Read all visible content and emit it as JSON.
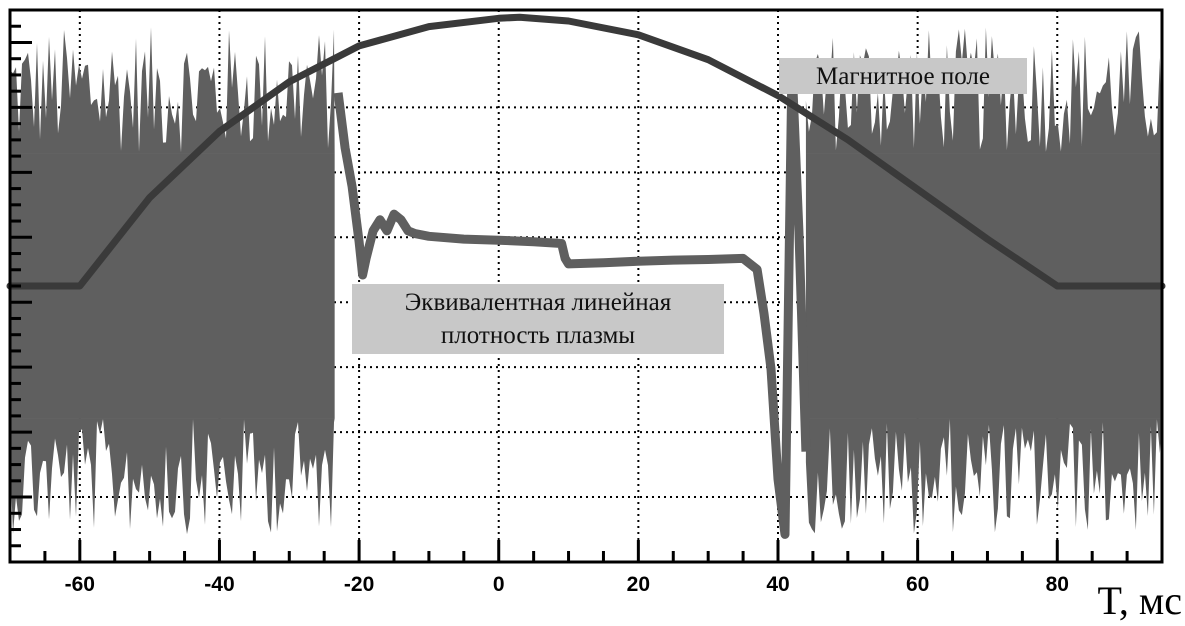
{
  "chart_data": {
    "type": "line",
    "title": "",
    "xlabel": "T, мс",
    "ylabel": "",
    "xlim": [
      -70,
      95
    ],
    "ylim": [
      0,
      1
    ],
    "grid": true,
    "x_ticks": [
      -60,
      -40,
      -20,
      0,
      20,
      40,
      60,
      80
    ],
    "x_tick_labels": [
      "-60",
      "-40",
      "-20",
      "0",
      "20",
      "40",
      "60",
      "80"
    ],
    "series": [
      {
        "name": "Магнитное поле",
        "color": "#3a3a3a",
        "x": [
          -70,
          -60,
          -50,
          -40,
          -30,
          -20,
          -10,
          0,
          3,
          10,
          20,
          30,
          40,
          50,
          60,
          70,
          80,
          85,
          95
        ],
        "y": [
          0.5,
          0.5,
          0.66,
          0.78,
          0.87,
          0.935,
          0.97,
          0.985,
          0.987,
          0.98,
          0.955,
          0.91,
          0.845,
          0.765,
          0.675,
          0.585,
          0.5,
          0.5,
          0.5
        ]
      },
      {
        "name": "Эквивалентная линейная плотность плазмы",
        "color": "#5f5f5f",
        "noise_segments": [
          {
            "x": [
              -70,
              -23.5
            ],
            "y": [
              0.05,
              0.97
            ]
          },
          {
            "x": [
              44,
              95
            ],
            "y": [
              0.05,
              0.97
            ]
          }
        ],
        "x": [
          -23,
          -22,
          -21,
          -20,
          -19.5,
          -19,
          -18,
          -17,
          -16,
          -15,
          -14,
          -13,
          -12,
          -10,
          -5,
          0,
          5,
          9,
          9.5,
          10,
          15,
          20,
          25,
          30,
          35,
          37,
          38,
          39,
          40,
          41,
          42,
          43,
          44
        ],
        "y": [
          0.85,
          0.75,
          0.68,
          0.58,
          0.52,
          0.55,
          0.6,
          0.62,
          0.6,
          0.63,
          0.62,
          0.6,
          0.595,
          0.59,
          0.585,
          0.583,
          0.58,
          0.577,
          0.55,
          0.54,
          0.542,
          0.545,
          0.547,
          0.548,
          0.55,
          0.53,
          0.45,
          0.35,
          0.15,
          0.05,
          0.9,
          0.6,
          0.2
        ]
      }
    ],
    "annotations": [
      {
        "text": "Магнитное поле",
        "x": 57,
        "y": 0.92
      },
      {
        "lines": [
          "Эквивалентная линейная",
          "плотность плазмы"
        ],
        "x": 0,
        "y": 0.38
      }
    ]
  }
}
